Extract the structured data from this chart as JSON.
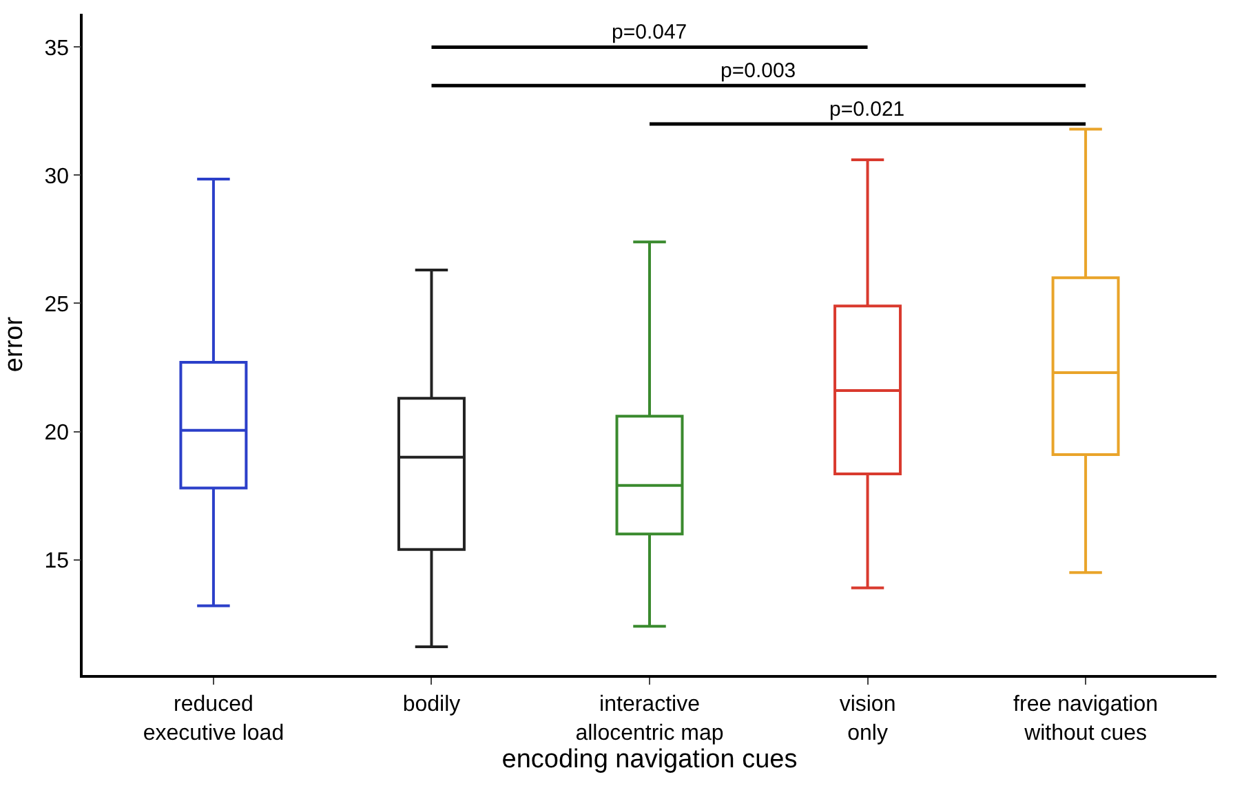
{
  "chart_data": {
    "type": "box",
    "xlabel": "encoding navigation cues",
    "ylabel": "error",
    "categories": [
      "reduced\nexecutive load",
      "bodily",
      "interactive\nallocentric map",
      "vision\nonly",
      "free navigation\nwithout cues"
    ],
    "colors": [
      "#2b3fc9",
      "#222222",
      "#3a8a2e",
      "#d93a2e",
      "#e9a42a"
    ],
    "boxes": [
      {
        "low": 13.2,
        "q1": 17.8,
        "median": 20.05,
        "q3": 22.7,
        "high": 29.85
      },
      {
        "low": 11.6,
        "q1": 15.4,
        "median": 19.0,
        "q3": 21.3,
        "high": 26.3
      },
      {
        "low": 12.4,
        "q1": 16.0,
        "median": 17.9,
        "q3": 20.6,
        "high": 27.4
      },
      {
        "low": 13.9,
        "q1": 18.35,
        "median": 21.6,
        "q3": 24.9,
        "high": 30.6
      },
      {
        "low": 14.5,
        "q1": 19.1,
        "median": 22.3,
        "q3": 26.0,
        "high": 31.8
      }
    ],
    "ylim": [
      10.5,
      36.3
    ],
    "yticks": [
      15,
      20,
      25,
      30,
      35
    ],
    "grid": false,
    "annotations": [
      "p=0.047",
      "p=0.003",
      "p=0.021"
    ]
  }
}
